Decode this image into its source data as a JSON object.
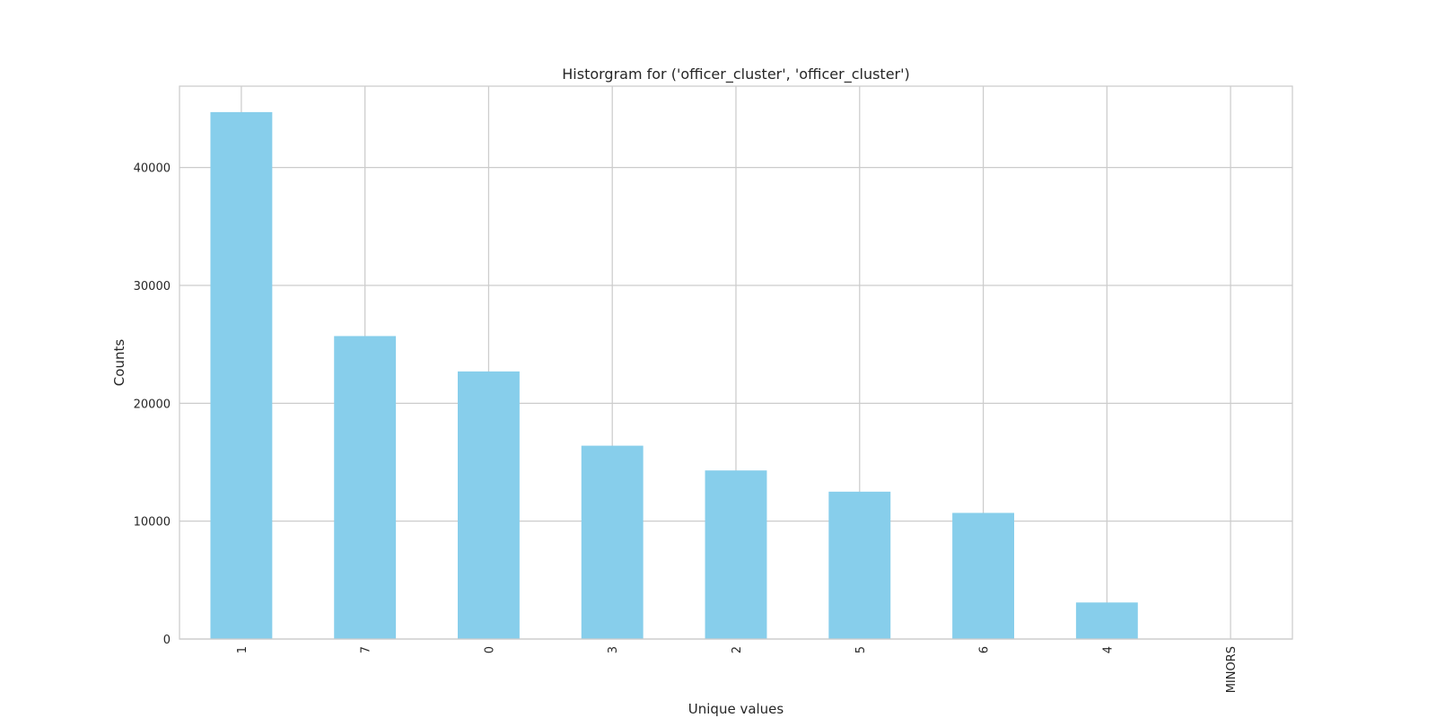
{
  "chart_data": {
    "type": "bar",
    "title": "Historgram for ('officer_cluster', 'officer_cluster')",
    "xlabel": "Unique values",
    "ylabel": "Counts",
    "categories": [
      "1",
      "7",
      "0",
      "3",
      "2",
      "5",
      "6",
      "4",
      "MINORS"
    ],
    "values": [
      44700,
      25700,
      22700,
      16400,
      14300,
      12500,
      10700,
      3100,
      0
    ],
    "ylim": [
      0,
      46900
    ],
    "yticks": [
      0,
      10000,
      20000,
      30000,
      40000
    ],
    "ytick_labels": [
      "0",
      "10000",
      "20000",
      "30000",
      "40000"
    ],
    "grid": true,
    "legend": "none",
    "colors": {
      "bar": "#87ceeb",
      "grid": "#cccccc",
      "spine": "#cccccc",
      "text": "#262626"
    }
  }
}
